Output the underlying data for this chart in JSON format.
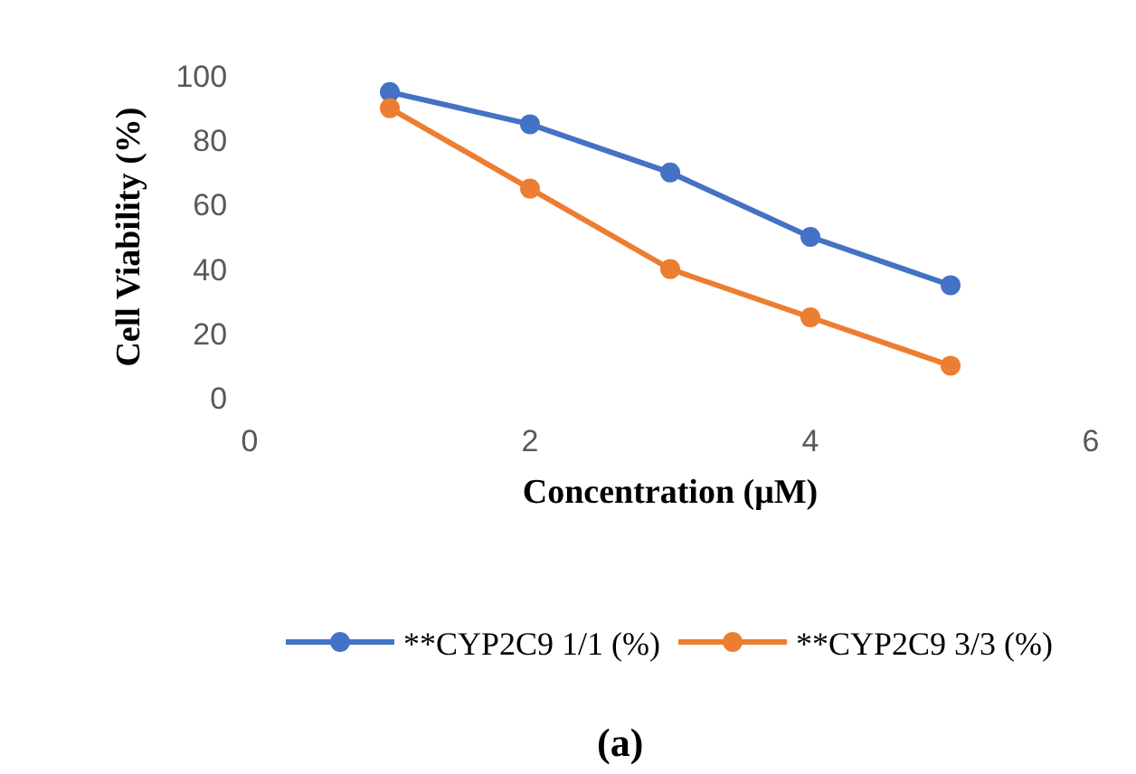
{
  "chart_data": {
    "type": "line",
    "xlabel": "Concentration (μM)",
    "ylabel": "Cell Viability (%)",
    "x": [
      1,
      2,
      3,
      4,
      5
    ],
    "series": [
      {
        "name": "**CYP2C9 1/1 (%)",
        "color": "#4472c4",
        "values": [
          95,
          85,
          70,
          50,
          35
        ]
      },
      {
        "name": "**CYP2C9 3/3 (%)",
        "color": "#ed7d31",
        "values": [
          90,
          65,
          40,
          25,
          10
        ]
      }
    ],
    "xlim": [
      0,
      6
    ],
    "xticks": [
      0,
      2,
      4,
      6
    ],
    "ylim": [
      0,
      100
    ],
    "yticks": [
      0,
      20,
      40,
      60,
      80,
      100
    ],
    "grid": false,
    "legend": "bottom",
    "marker": "circle",
    "line_style": "solid",
    "annotations": [
      "(a)"
    ]
  }
}
